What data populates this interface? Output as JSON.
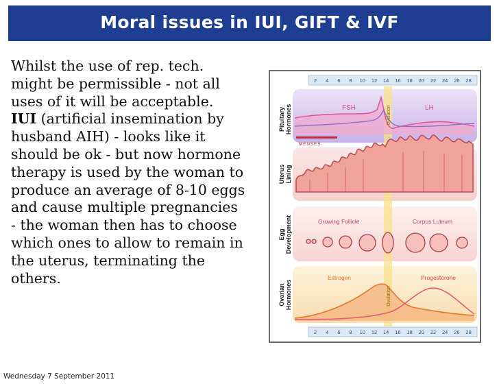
{
  "slide": {
    "title": "Moral issues in IUI, GIFT & IVF",
    "body_lines": [
      "Whilst the use of rep. tech.",
      "might be permissible - not all",
      "uses of it will be acceptable.",
      "(artificial insemination by",
      "husband AIH) - looks like it",
      "should be ok - but now hormone",
      "therapy is used by the woman to",
      "produce an average of 8-10 eggs",
      "and cause multiple pregnancies",
      "- the woman then has to choose",
      "which ones to allow to remain in",
      "the uterus, terminating the",
      "others."
    ],
    "iui_bold": "IUI",
    "footer": "Wednesday 7 September 2011"
  },
  "diagram": {
    "day_ticks": [
      "2",
      "4",
      "6",
      "8",
      "10",
      "12",
      "14",
      "16",
      "18",
      "20",
      "22",
      "24",
      "26",
      "28"
    ],
    "row_labels": {
      "pituitary": [
        "Pituitary",
        "Hormones"
      ],
      "uterus": [
        "Uterus",
        "Lining"
      ],
      "egg": [
        "Egg",
        "Development"
      ],
      "ovarian": [
        "Ovarian",
        "Hormones"
      ]
    },
    "fsh": "FSH",
    "lh": "LH",
    "menses": "MENSES",
    "ovulation": "Ovulation",
    "growing_follicle": "Growing Follicle",
    "corpus_luteum": "Corpus Luteum",
    "estrogen": "Estrogen",
    "progesterone": "Progesterone",
    "colors": {
      "title_bar": "#1e3f91",
      "fsh": "#e0559a",
      "lh": "#8e6fc6",
      "estrogen": "#e8742a",
      "progesterone": "#e25c73",
      "uterus_lining": "#c04a55",
      "ovulation_band": "#f5e28a"
    }
  }
}
